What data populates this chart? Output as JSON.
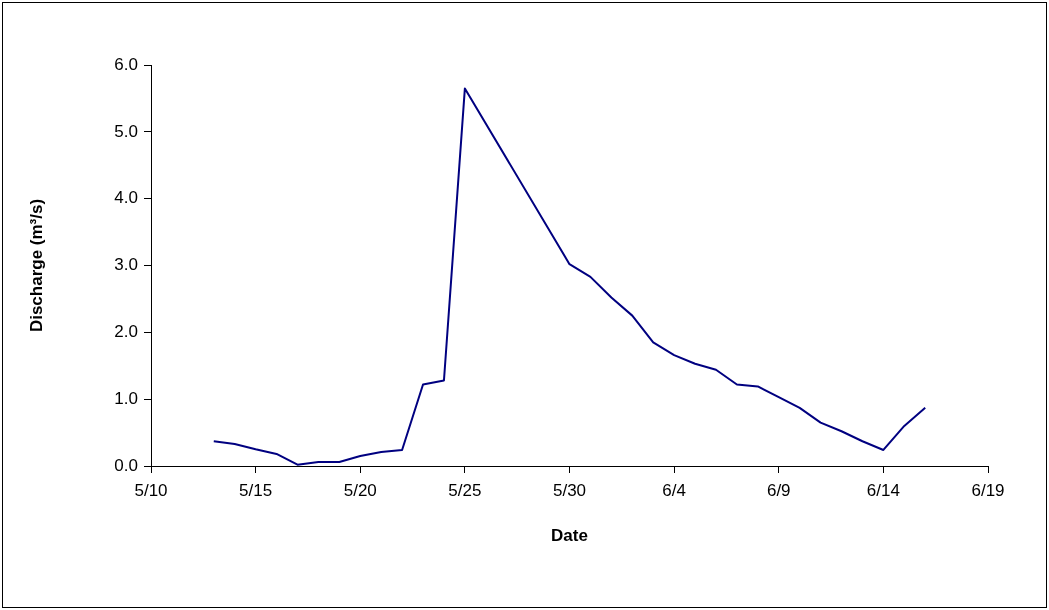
{
  "chart_data": {
    "type": "line",
    "xlabel": "Date",
    "ylabel": "Discharge (m³/s)",
    "x": [
      "--05-13",
      "--05-14",
      "--05-15",
      "--05-16",
      "--05-17",
      "--05-18",
      "--05-19",
      "--05-20",
      "--05-21",
      "--05-22",
      "--05-23",
      "--05-24",
      "--05-25",
      "--05-30",
      "--05-31",
      "--06-01",
      "--06-02",
      "--06-03",
      "--06-04",
      "--06-05",
      "--06-06",
      "--06-07",
      "--06-08",
      "--06-09",
      "--06-10",
      "--06-11",
      "--06-12",
      "--06-13",
      "--06-14",
      "--06-15",
      "--06-16"
    ],
    "series": [
      {
        "color": "#000080",
        "values": [
          0.37,
          0.33,
          0.25,
          0.18,
          0.02,
          0.06,
          0.06,
          0.15,
          0.21,
          0.24,
          1.22,
          1.28,
          5.65,
          3.02,
          2.83,
          2.52,
          2.25,
          1.85,
          1.66,
          1.53,
          1.44,
          1.22,
          1.19,
          1.03,
          0.87,
          0.65,
          0.52,
          0.37,
          0.24,
          0.6,
          0.87
        ]
      }
    ],
    "xlim": [
      "--05-10",
      "--06-19"
    ],
    "xticks": [
      {
        "value": "--05-10",
        "label": "5/10"
      },
      {
        "value": "--05-15",
        "label": "5/15"
      },
      {
        "value": "--05-20",
        "label": "5/20"
      },
      {
        "value": "--05-25",
        "label": "5/25"
      },
      {
        "value": "--05-30",
        "label": "5/30"
      },
      {
        "value": "--06-04",
        "label": "6/4"
      },
      {
        "value": "--06-09",
        "label": "6/9"
      },
      {
        "value": "--06-14",
        "label": "6/14"
      },
      {
        "value": "--06-19",
        "label": "6/19"
      }
    ],
    "ylim": [
      0,
      6
    ],
    "yticks": [
      {
        "value": 0,
        "label": "0.0"
      },
      {
        "value": 1,
        "label": "1.0"
      },
      {
        "value": 2,
        "label": "2.0"
      },
      {
        "value": 3,
        "label": "3.0"
      },
      {
        "value": 4,
        "label": "4.0"
      },
      {
        "value": 5,
        "label": "5.0"
      },
      {
        "value": 6,
        "label": "6.0"
      }
    ],
    "grid": false,
    "legend": false,
    "marker": "none",
    "line_style": "solid"
  }
}
